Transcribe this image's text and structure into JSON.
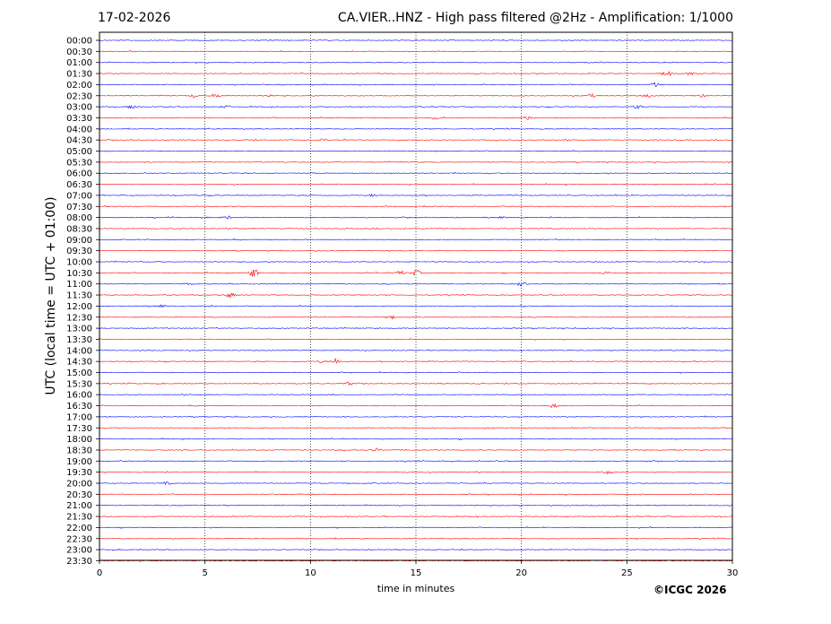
{
  "header": {
    "date": "17-02-2026",
    "title": "CA.VIER..HNZ - High pass filtered @2Hz - Amplification: 1/1000"
  },
  "footer": {
    "copyright": "©ICGC 2026"
  },
  "colors": {
    "odd": "#ff0000",
    "even": "#0000ff",
    "axis": "#000000",
    "grid": "#000000"
  },
  "chart_data": {
    "type": "line",
    "title": "CA.VIER..HNZ - High pass filtered @2Hz - Amplification: 1/1000",
    "xlabel": "time in minutes",
    "ylabel": "UTC (local time = UTC + 01:00)",
    "xlim": [
      0,
      30
    ],
    "xticks": [
      0,
      5,
      10,
      15,
      20,
      25,
      30
    ],
    "grid_x": [
      5,
      10,
      15,
      20,
      25
    ],
    "row_colors": [
      "#0000ff",
      "#ff0000"
    ],
    "rows": [
      "00:00",
      "00:30",
      "01:00",
      "01:30",
      "02:00",
      "02:30",
      "03:00",
      "03:30",
      "04:00",
      "04:30",
      "05:00",
      "05:30",
      "06:00",
      "06:30",
      "07:00",
      "07:30",
      "08:00",
      "08:30",
      "09:00",
      "09:30",
      "10:00",
      "10:30",
      "11:00",
      "11:30",
      "12:00",
      "12:30",
      "13:00",
      "13:30",
      "14:00",
      "14:30",
      "15:00",
      "15:30",
      "16:00",
      "16:30",
      "17:00",
      "17:30",
      "18:00",
      "18:30",
      "19:00",
      "19:30",
      "20:00",
      "20:30",
      "21:00",
      "21:30",
      "22:00",
      "22:30",
      "23:00",
      "23:30"
    ],
    "events": [
      {
        "row": "02:00",
        "t": 26.4,
        "amp": 0.4
      },
      {
        "row": "01:30",
        "t": 26.9,
        "amp": 0.5
      },
      {
        "row": "01:30",
        "t": 28.0,
        "amp": 0.3
      },
      {
        "row": "02:30",
        "t": 4.5,
        "amp": 0.35
      },
      {
        "row": "02:30",
        "t": 5.5,
        "amp": 0.35
      },
      {
        "row": "02:30",
        "t": 8.0,
        "amp": 0.25
      },
      {
        "row": "02:30",
        "t": 23.3,
        "amp": 0.3
      },
      {
        "row": "02:30",
        "t": 26.0,
        "amp": 0.25
      },
      {
        "row": "02:30",
        "t": 28.5,
        "amp": 0.3
      },
      {
        "row": "03:00",
        "t": 1.5,
        "amp": 0.4
      },
      {
        "row": "03:00",
        "t": 6.0,
        "amp": 0.25
      },
      {
        "row": "03:00",
        "t": 25.5,
        "amp": 0.3
      },
      {
        "row": "03:30",
        "t": 16.0,
        "amp": 0.25
      },
      {
        "row": "03:30",
        "t": 20.3,
        "amp": 0.25
      },
      {
        "row": "04:30",
        "t": 10.6,
        "amp": 0.2
      },
      {
        "row": "07:00",
        "t": 13.0,
        "amp": 0.25
      },
      {
        "row": "08:00",
        "t": 6.0,
        "amp": 0.25
      },
      {
        "row": "08:00",
        "t": 19.0,
        "amp": 0.2
      },
      {
        "row": "10:30",
        "t": 7.3,
        "amp": 0.8
      },
      {
        "row": "10:30",
        "t": 14.3,
        "amp": 0.35
      },
      {
        "row": "10:30",
        "t": 15.0,
        "amp": 0.5
      },
      {
        "row": "10:30",
        "t": 24.0,
        "amp": 0.25
      },
      {
        "row": "11:00",
        "t": 20.0,
        "amp": 0.4
      },
      {
        "row": "11:00",
        "t": 4.2,
        "amp": 0.2
      },
      {
        "row": "11:30",
        "t": 6.2,
        "amp": 0.45
      },
      {
        "row": "12:00",
        "t": 2.9,
        "amp": 0.3
      },
      {
        "row": "12:30",
        "t": 13.8,
        "amp": 0.3
      },
      {
        "row": "14:30",
        "t": 11.2,
        "amp": 0.55
      },
      {
        "row": "14:30",
        "t": 10.5,
        "amp": 0.25
      },
      {
        "row": "15:30",
        "t": 11.8,
        "amp": 0.25
      },
      {
        "row": "16:30",
        "t": 21.5,
        "amp": 0.35
      },
      {
        "row": "18:30",
        "t": 13.1,
        "amp": 0.3
      },
      {
        "row": "19:30",
        "t": 24.1,
        "amp": 0.3
      },
      {
        "row": "20:00",
        "t": 3.2,
        "amp": 0.2
      }
    ]
  }
}
